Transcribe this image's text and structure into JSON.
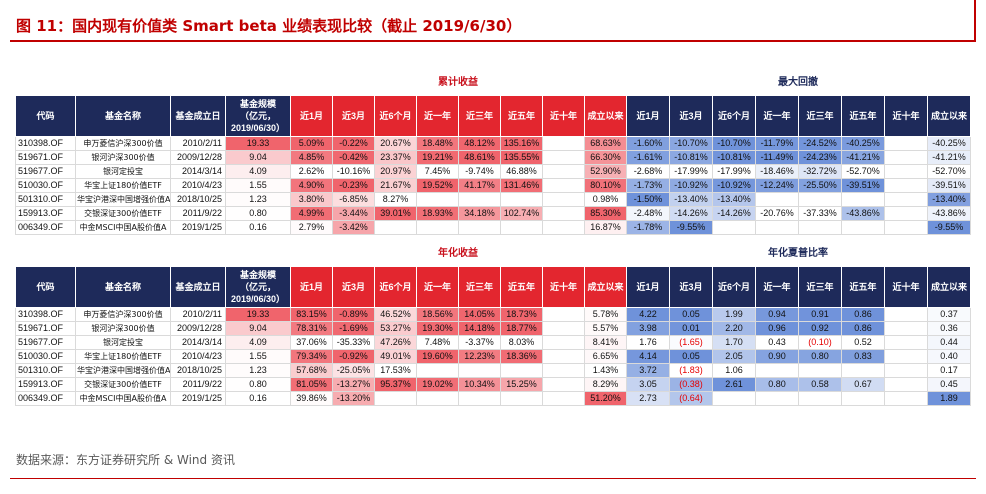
{
  "figure": {
    "title": "图 11：国内现有价值类 Smart beta 业绩表现比较（截止 2019/6/30）",
    "source": "数据来源：东方证券研究所 & Wind 资讯"
  },
  "colors": {
    "title_red": "#c00000",
    "header_navy": "#1e2a5a",
    "header_red": "#e3262f",
    "group_label_red": "#c8101c",
    "group_label_navy": "#1e2a5a",
    "heat_red": "#f0646c",
    "heat_blue": "#6f92da",
    "negative_text": "#e60000"
  },
  "header": {
    "code": "代码",
    "name": "基金名称",
    "inception": "基金成立日",
    "size": [
      "基金规模",
      "（亿元，",
      "2019/06/30）"
    ],
    "periods": [
      "近1月",
      "近3月",
      "近6个月",
      "近一年",
      "近三年",
      "近五年",
      "近十年",
      "成立以来"
    ]
  },
  "tables": [
    {
      "left_group": "累计收益",
      "right_group": "最大回撤",
      "rows": [
        {
          "code": "310398.OF",
          "name": "申万菱信沪深300价值",
          "inception": "2010/2/11",
          "size": "19.33",
          "left": [
            "5.09%",
            "-0.22%",
            "20.67%",
            "18.48%",
            "48.12%",
            "135.16%",
            "",
            "68.63%"
          ],
          "right": [
            "-1.60%",
            "-10.70%",
            "-10.70%",
            "-11.79%",
            "-24.52%",
            "-40.25%",
            "",
            "-40.25%"
          ]
        },
        {
          "code": "519671.OF",
          "name": "银河沪深300价值",
          "inception": "2009/12/28",
          "size": "9.04",
          "left": [
            "4.85%",
            "-0.42%",
            "23.37%",
            "19.21%",
            "48.61%",
            "135.55%",
            "",
            "66.30%"
          ],
          "right": [
            "-1.61%",
            "-10.81%",
            "-10.81%",
            "-11.49%",
            "-24.23%",
            "-41.21%",
            "",
            "-41.21%"
          ]
        },
        {
          "code": "519677.OF",
          "name": "银河定投宝",
          "inception": "2014/3/14",
          "size": "4.09",
          "left": [
            "2.62%",
            "-10.16%",
            "20.97%",
            "7.45%",
            "-9.74%",
            "46.88%",
            "",
            "52.90%"
          ],
          "right": [
            "-2.68%",
            "-17.99%",
            "-17.99%",
            "-18.46%",
            "-32.72%",
            "-52.70%",
            "",
            "-52.70%"
          ]
        },
        {
          "code": "510030.OF",
          "name": "华宝上证180价值ETF",
          "inception": "2010/4/23",
          "size": "1.55",
          "left": [
            "4.90%",
            "-0.23%",
            "21.67%",
            "19.52%",
            "41.17%",
            "131.46%",
            "",
            "80.10%"
          ],
          "right": [
            "-1.73%",
            "-10.92%",
            "-10.92%",
            "-12.24%",
            "-25.50%",
            "-39.51%",
            "",
            "-39.51%"
          ]
        },
        {
          "code": "501310.OF",
          "name": "华宝沪港深中国增强价值A",
          "inception": "2018/10/25",
          "size": "1.23",
          "left": [
            "3.80%",
            "-6.85%",
            "8.27%",
            "",
            "",
            "",
            "",
            "0.98%"
          ],
          "right": [
            "-1.50%",
            "-13.40%",
            "-13.40%",
            "",
            "",
            "",
            "",
            "-13.40%"
          ]
        },
        {
          "code": "159913.OF",
          "name": "交银深证300价值ETF",
          "inception": "2011/9/22",
          "size": "0.80",
          "left": [
            "4.99%",
            "-3.44%",
            "39.01%",
            "18.93%",
            "34.18%",
            "102.74%",
            "",
            "85.30%"
          ],
          "right": [
            "-2.48%",
            "-14.26%",
            "-14.26%",
            "-20.76%",
            "-37.33%",
            "-43.86%",
            "",
            "-43.86%"
          ]
        },
        {
          "code": "006349.OF",
          "name": "中金MSCI中国A股价值A",
          "inception": "2019/1/25",
          "size": "0.16",
          "left": [
            "2.79%",
            "-3.42%",
            "",
            "",
            "",
            "",
            "",
            "16.87%"
          ],
          "right": [
            "-1.78%",
            "-9.55%",
            "",
            "",
            "",
            "",
            "",
            "-9.55%"
          ]
        }
      ]
    },
    {
      "left_group": "年化收益",
      "right_group": "年化夏普比率",
      "rows": [
        {
          "code": "310398.OF",
          "name": "申万菱信沪深300价值",
          "inception": "2010/2/11",
          "size": "19.33",
          "left": [
            "83.15%",
            "-0.89%",
            "46.52%",
            "18.56%",
            "14.05%",
            "18.73%",
            "",
            "5.78%"
          ],
          "right": [
            "4.22",
            "0.05",
            "1.99",
            "0.94",
            "0.91",
            "0.86",
            "",
            "0.37"
          ]
        },
        {
          "code": "519671.OF",
          "name": "银河沪深300价值",
          "inception": "2009/12/28",
          "size": "9.04",
          "left": [
            "78.31%",
            "-1.69%",
            "53.27%",
            "19.30%",
            "14.18%",
            "18.77%",
            "",
            "5.57%"
          ],
          "right": [
            "3.98",
            "0.01",
            "2.20",
            "0.96",
            "0.92",
            "0.86",
            "",
            "0.36"
          ]
        },
        {
          "code": "519677.OF",
          "name": "银河定投宝",
          "inception": "2014/3/14",
          "size": "4.09",
          "left": [
            "37.06%",
            "-35.33%",
            "47.26%",
            "7.48%",
            "-3.37%",
            "8.03%",
            "",
            "8.41%"
          ],
          "right": [
            "1.76",
            "(1.65)",
            "1.70",
            "0.43",
            "(0.10)",
            "0.52",
            "",
            "0.44"
          ]
        },
        {
          "code": "510030.OF",
          "name": "华宝上证180价值ETF",
          "inception": "2010/4/23",
          "size": "1.55",
          "left": [
            "79.34%",
            "-0.92%",
            "49.01%",
            "19.60%",
            "12.23%",
            "18.36%",
            "",
            "6.65%"
          ],
          "right": [
            "4.14",
            "0.05",
            "2.05",
            "0.90",
            "0.80",
            "0.83",
            "",
            "0.40"
          ]
        },
        {
          "code": "501310.OF",
          "name": "华宝沪港深中国增强价值A",
          "inception": "2018/10/25",
          "size": "1.23",
          "left": [
            "57.68%",
            "-25.05%",
            "17.53%",
            "",
            "",
            "",
            "",
            "1.43%"
          ],
          "right": [
            "3.72",
            "(1.83)",
            "1.06",
            "",
            "",
            "",
            "",
            "0.17"
          ]
        },
        {
          "code": "159913.OF",
          "name": "交银深证300价值ETF",
          "inception": "2011/9/22",
          "size": "0.80",
          "left": [
            "81.05%",
            "-13.27%",
            "95.37%",
            "19.02%",
            "10.34%",
            "15.25%",
            "",
            "8.29%"
          ],
          "right": [
            "3.05",
            "(0.38)",
            "2.61",
            "0.80",
            "0.58",
            "0.67",
            "",
            "0.45"
          ]
        },
        {
          "code": "006349.OF",
          "name": "中金MSCI中国A股价值A",
          "inception": "2019/1/25",
          "size": "0.16",
          "left": [
            "39.86%",
            "-13.20%",
            "",
            "",
            "",
            "",
            "",
            "51.20%"
          ],
          "right": [
            "2.73",
            "(0.64)",
            "",
            "",
            "",
            "",
            "",
            "1.89"
          ]
        }
      ]
    }
  ]
}
